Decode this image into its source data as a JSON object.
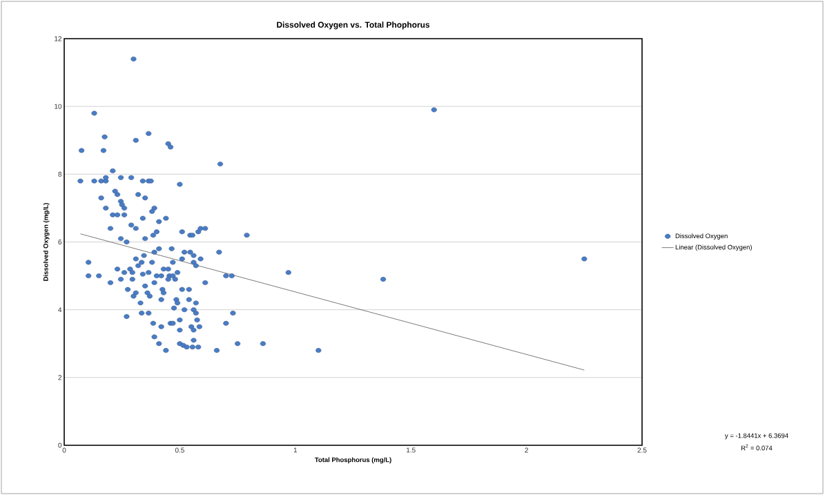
{
  "chart_data": {
    "type": "scatter",
    "title": "Dissolved Oxygen vs. Total Phophorus",
    "xlabel": "Total Phosphorus (mg/L)",
    "ylabel": "Dissolved Oxygen (mg/L)",
    "xlim": [
      0,
      2.5
    ],
    "xticks": [
      0,
      0.5,
      1,
      1.5,
      2,
      2.5
    ],
    "ylim": [
      0,
      12
    ],
    "yticks": [
      0,
      2,
      4,
      6,
      8,
      10,
      12
    ],
    "grid": "y",
    "legend": "right",
    "series": [
      {
        "name": "Dissolved Oxygen",
        "color": "#4a7cc4",
        "marker": "circle",
        "x": [
          0.3,
          0.13,
          0.175,
          0.17,
          0.075,
          0.31,
          0.365,
          0.45,
          0.46,
          0.675,
          1.6,
          2.25,
          1.38,
          0.97,
          1.1,
          0.86,
          0.75,
          0.79,
          0.73,
          0.7,
          0.7,
          0.725,
          0.67,
          0.66,
          0.5,
          0.21,
          0.07,
          0.13,
          0.16,
          0.18,
          0.18,
          0.245,
          0.29,
          0.34,
          0.365,
          0.375,
          0.22,
          0.23,
          0.16,
          0.32,
          0.35,
          0.245,
          0.25,
          0.18,
          0.26,
          0.39,
          0.38,
          0.21,
          0.23,
          0.26,
          0.34,
          0.44,
          0.41,
          0.29,
          0.31,
          0.2,
          0.245,
          0.27,
          0.35,
          0.385,
          0.4,
          0.51,
          0.545,
          0.555,
          0.58,
          0.59,
          0.61,
          0.41,
          0.39,
          0.465,
          0.52,
          0.545,
          0.56,
          0.345,
          0.31,
          0.335,
          0.38,
          0.47,
          0.51,
          0.56,
          0.59,
          0.57,
          0.32,
          0.105,
          0.23,
          0.26,
          0.285,
          0.295,
          0.34,
          0.365,
          0.4,
          0.42,
          0.43,
          0.45,
          0.455,
          0.47,
          0.45,
          0.48,
          0.49,
          0.105,
          0.15,
          0.2,
          0.245,
          0.295,
          0.39,
          0.61,
          0.35,
          0.275,
          0.31,
          0.3,
          0.36,
          0.37,
          0.425,
          0.43,
          0.51,
          0.54,
          0.42,
          0.33,
          0.485,
          0.49,
          0.475,
          0.54,
          0.57,
          0.52,
          0.56,
          0.57,
          0.335,
          0.365,
          0.27,
          0.5,
          0.575,
          0.385,
          0.42,
          0.46,
          0.47,
          0.5,
          0.55,
          0.585,
          0.56,
          0.39,
          0.56,
          0.41,
          0.5,
          0.515,
          0.53,
          0.555,
          0.58,
          0.44
        ],
        "values": [
          11.4,
          9.8,
          9.1,
          8.7,
          8.7,
          9.0,
          9.2,
          8.9,
          8.8,
          8.3,
          9.9,
          5.5,
          4.9,
          5.1,
          2.8,
          3.0,
          3.0,
          6.2,
          3.9,
          3.6,
          5.0,
          5.0,
          5.7,
          2.8,
          7.7,
          8.1,
          7.8,
          7.8,
          7.8,
          7.8,
          7.9,
          7.9,
          7.9,
          7.8,
          7.8,
          7.8,
          7.5,
          7.4,
          7.3,
          7.4,
          7.3,
          7.2,
          7.1,
          7.0,
          7.0,
          7.0,
          6.9,
          6.8,
          6.8,
          6.8,
          6.7,
          6.7,
          6.6,
          6.5,
          6.4,
          6.4,
          6.1,
          6.0,
          6.1,
          6.2,
          6.3,
          6.3,
          6.2,
          6.2,
          6.3,
          6.4,
          6.4,
          5.8,
          5.7,
          5.8,
          5.7,
          5.7,
          5.6,
          5.6,
          5.5,
          5.4,
          5.4,
          5.4,
          5.5,
          5.4,
          5.5,
          5.3,
          5.3,
          5.4,
          5.2,
          5.1,
          5.2,
          5.1,
          5.05,
          5.1,
          5.0,
          5.0,
          5.2,
          5.2,
          5.0,
          5.0,
          4.9,
          4.9,
          5.1,
          5.0,
          5.0,
          4.8,
          4.9,
          4.9,
          4.8,
          4.8,
          4.7,
          4.6,
          4.5,
          4.4,
          4.5,
          4.4,
          4.6,
          4.5,
          4.6,
          4.6,
          4.3,
          4.2,
          4.3,
          4.2,
          4.05,
          4.3,
          4.2,
          4.0,
          4.0,
          3.9,
          3.9,
          3.9,
          3.8,
          3.7,
          3.7,
          3.6,
          3.5,
          3.6,
          3.6,
          3.4,
          3.5,
          3.5,
          3.4,
          3.2,
          3.1,
          3.0,
          3.0,
          2.95,
          2.9,
          2.9,
          2.9,
          2.8
        ]
      },
      {
        "name": "Linear (Dissolved Oxygen)",
        "type": "line",
        "marker": "none",
        "color": "#404040",
        "x": [
          0.07,
          2.25
        ],
        "values": [
          6.24,
          2.22
        ]
      }
    ],
    "annotations": [
      "y = -1.8441x + 6.3694",
      "R$^{2}$ = 0.074"
    ]
  }
}
